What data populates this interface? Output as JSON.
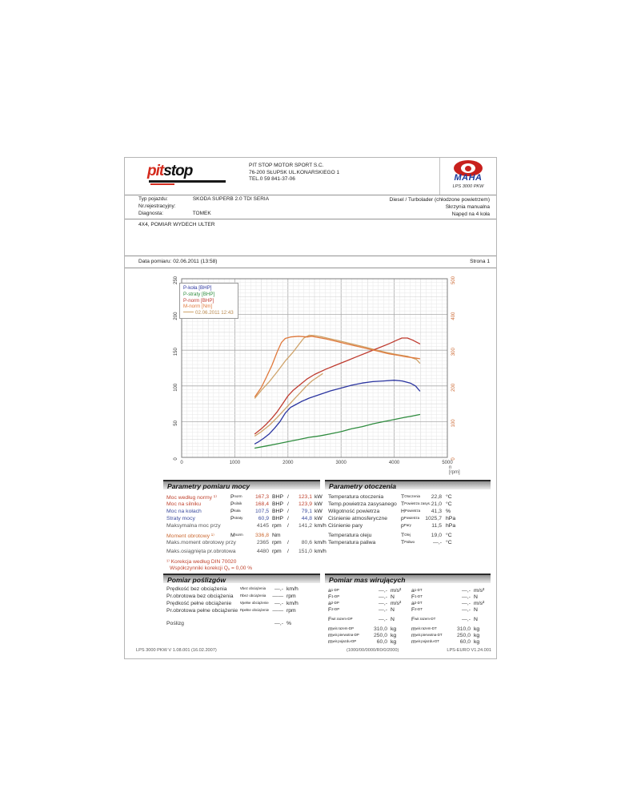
{
  "header": {
    "logo": {
      "part1": "pit",
      "part2": "stop"
    },
    "company_lines": [
      "PIT STOP MOTOR SPORT S.C.",
      "76-200 SŁUPSK UL.KONARSKIEGO 1",
      "TEL.0 59 841-37-06"
    ],
    "maha": {
      "name": "MAHA",
      "model": "LPS 3000 PKW"
    }
  },
  "vehicle": {
    "left": [
      {
        "label": "Typ pojazdu:",
        "value": "SKODA SUPERB 2.0 TDI SERIA"
      },
      {
        "label": "Nr.rejestracyjny:",
        "value": ""
      },
      {
        "label": "Diagnosta:",
        "value": "TOMEK"
      }
    ],
    "right": [
      "Diesel / Turbolader (chłodzone powietrzem)",
      "Skrzynia manualna",
      "Napęd na 4 koła"
    ]
  },
  "comment": "4X4, POMIAR WYDECH ULTER",
  "meta": {
    "date_label": "Data pomiaru: 02.06.2011 (13:58)",
    "page_label": "Strona 1"
  },
  "chart_data": {
    "type": "line",
    "xlabel": "n [rpm]",
    "x_range": [
      0,
      5000
    ],
    "x_ticks": [
      0,
      1000,
      2000,
      3000,
      4000,
      5000
    ],
    "y_left": {
      "ticks": [
        0,
        50,
        100,
        150,
        200,
        250
      ],
      "range": [
        0,
        250
      ],
      "color": "#333333"
    },
    "y_right": {
      "ticks": [
        0,
        100,
        200,
        300,
        400,
        500
      ],
      "range": [
        0,
        500
      ],
      "color": "#cc6a35"
    },
    "grid": "on",
    "legend_position": "top-left",
    "legend": [
      {
        "label": "P-koła [BHP]",
        "color": "#2b35a0"
      },
      {
        "label": "P-straty [BHP]",
        "color": "#2f8c3f"
      },
      {
        "label": "P-norm [BHP]",
        "color": "#bf3b2f"
      },
      {
        "label": "M-norm [Nm]",
        "color": "#e0793c"
      },
      {
        "label": "02.06.2011 12:43",
        "color": "#b98a50",
        "line_swatch": true
      }
    ],
    "series": [
      {
        "name": "M-norm 02.06.2011 12:43",
        "axis": "right",
        "color": "#cfa36a",
        "points": [
          [
            1380,
            166
          ],
          [
            1500,
            188
          ],
          [
            1650,
            212
          ],
          [
            1800,
            240
          ],
          [
            1950,
            270
          ],
          [
            2100,
            295
          ],
          [
            2200,
            315
          ],
          [
            2300,
            334
          ],
          [
            2400,
            342
          ],
          [
            2500,
            341
          ],
          [
            2650,
            337
          ],
          [
            2850,
            330
          ],
          [
            3050,
            323
          ],
          [
            3250,
            316
          ],
          [
            3450,
            309
          ],
          [
            3650,
            301
          ],
          [
            3850,
            294
          ],
          [
            4050,
            288
          ],
          [
            4250,
            283
          ],
          [
            4420,
            274
          ],
          [
            4480,
            264
          ]
        ]
      },
      {
        "name": "P-norm 02.06.2011 12:43",
        "axis": "left",
        "color": "#cfa36a",
        "points": [
          [
            1380,
            30
          ],
          [
            1500,
            36
          ],
          [
            1650,
            45
          ],
          [
            1800,
            56
          ],
          [
            1950,
            68
          ],
          [
            2100,
            80
          ],
          [
            2250,
            92
          ],
          [
            2350,
            100
          ],
          [
            2450,
            107
          ],
          [
            2550,
            112
          ],
          [
            2650,
            117
          ]
        ]
      },
      {
        "name": "P-straty",
        "axis": "left",
        "color": "#2f8c3f",
        "points": [
          [
            1380,
            13
          ],
          [
            1600,
            16
          ],
          [
            1800,
            19
          ],
          [
            2000,
            22
          ],
          [
            2200,
            25
          ],
          [
            2400,
            28
          ],
          [
            2600,
            30
          ],
          [
            2800,
            33
          ],
          [
            3000,
            36
          ],
          [
            3200,
            40
          ],
          [
            3400,
            43
          ],
          [
            3600,
            47
          ],
          [
            3800,
            50
          ],
          [
            4000,
            53
          ],
          [
            4200,
            56
          ],
          [
            4350,
            58
          ],
          [
            4480,
            60
          ]
        ]
      },
      {
        "name": "P-koła",
        "axis": "left",
        "color": "#2b35a0",
        "points": [
          [
            1380,
            19
          ],
          [
            1450,
            22
          ],
          [
            1550,
            27
          ],
          [
            1650,
            33
          ],
          [
            1750,
            41
          ],
          [
            1850,
            50
          ],
          [
            1950,
            62
          ],
          [
            2050,
            70
          ],
          [
            2150,
            74
          ],
          [
            2250,
            78
          ],
          [
            2400,
            83
          ],
          [
            2600,
            88
          ],
          [
            2800,
            93
          ],
          [
            3000,
            97
          ],
          [
            3200,
            101
          ],
          [
            3400,
            104
          ],
          [
            3600,
            106
          ],
          [
            3800,
            107
          ],
          [
            4000,
            108
          ],
          [
            4150,
            107
          ],
          [
            4300,
            104
          ],
          [
            4400,
            100
          ],
          [
            4480,
            93
          ]
        ]
      },
      {
        "name": "P-norm",
        "axis": "left",
        "color": "#bf3b2f",
        "points": [
          [
            1380,
            33
          ],
          [
            1500,
            40
          ],
          [
            1600,
            47
          ],
          [
            1700,
            55
          ],
          [
            1800,
            64
          ],
          [
            1900,
            75
          ],
          [
            2000,
            86
          ],
          [
            2100,
            94
          ],
          [
            2200,
            100
          ],
          [
            2300,
            106
          ],
          [
            2365,
            110
          ],
          [
            2500,
            116
          ],
          [
            2700,
            123
          ],
          [
            2900,
            129
          ],
          [
            3100,
            135
          ],
          [
            3300,
            141
          ],
          [
            3500,
            147
          ],
          [
            3700,
            153
          ],
          [
            3900,
            159
          ],
          [
            4050,
            164
          ],
          [
            4145,
            167
          ],
          [
            4250,
            167
          ],
          [
            4350,
            164
          ],
          [
            4480,
            159
          ]
        ]
      },
      {
        "name": "M-norm",
        "axis": "right",
        "color": "#e0793c",
        "points": [
          [
            1380,
            170
          ],
          [
            1500,
            196
          ],
          [
            1600,
            226
          ],
          [
            1700,
            258
          ],
          [
            1800,
            296
          ],
          [
            1880,
            322
          ],
          [
            1950,
            333
          ],
          [
            2050,
            337
          ],
          [
            2200,
            339
          ],
          [
            2365,
            337
          ],
          [
            2450,
            339
          ],
          [
            2550,
            336
          ],
          [
            2700,
            332
          ],
          [
            2900,
            325
          ],
          [
            3100,
            318
          ],
          [
            3300,
            311
          ],
          [
            3500,
            304
          ],
          [
            3700,
            297
          ],
          [
            3900,
            290
          ],
          [
            4100,
            285
          ],
          [
            4250,
            281
          ],
          [
            4400,
            278
          ],
          [
            4480,
            276
          ]
        ]
      }
    ]
  },
  "sections": {
    "power": {
      "title": "Parametry pomiaru mocy",
      "rows": [
        {
          "label": "Moc według normy ¹⁾",
          "sym": "P",
          "sub": "norm",
          "v1": "167,3",
          "u1": "BHP",
          "v2": "123,1",
          "u2": "kW",
          "color": "#c0442f"
        },
        {
          "label": "Moc na silniku",
          "sym": "P",
          "sub": "silnik",
          "v1": "168,4",
          "u1": "BHP",
          "v2": "123,9",
          "u2": "kW",
          "color": "#c0442f"
        },
        {
          "label": "Moc na kołach",
          "sym": "P",
          "sub": "koła",
          "v1": "107,5",
          "u1": "BHP",
          "v2": "79,1",
          "u2": "kW",
          "color": "#3c4c9e"
        },
        {
          "label": "Straty mocy",
          "sym": "P",
          "sub": "straty",
          "v1": "60,9",
          "u1": "BHP",
          "v2": "44,8",
          "u2": "kW",
          "color": "#3c4c9e"
        },
        {
          "label": "Maksymalna moc przy",
          "sym": "",
          "sub": "",
          "v1": "4145",
          "u1": "rpm",
          "v2": "141,2",
          "u2": "km/h",
          "color": "#555555"
        },
        {
          "label": "Moment obrotowy ¹⁾",
          "sym": "M",
          "sub": "norm",
          "v1": "336,8",
          "u1": "Nm",
          "v2": "",
          "u2": "",
          "color": "#cc6a33"
        },
        {
          "label": "Maks.moment obrotowy przy",
          "sym": "",
          "sub": "",
          "v1": "2365",
          "u1": "rpm",
          "v2": "80,6",
          "u2": "km/h",
          "color": "#555555"
        },
        {
          "label": "Maks.osiągnięta pr.obrotowa",
          "sym": "",
          "sub": "",
          "v1": "4480",
          "u1": "rpm",
          "v2": "151,0",
          "u2": "km/h",
          "color": "#555555"
        }
      ],
      "notes": [
        {
          "pre": "¹⁾ Korekcja według DIN 70020",
          "sub": "",
          "post": ""
        },
        {
          "pre": "Współczynniki korekcji  Q",
          "sub": "v",
          "post": " =   0,00 %"
        }
      ]
    },
    "ambient": {
      "title": "Parametry otoczenia",
      "rows": [
        {
          "label": "Temperatura otoczenia",
          "sym": "T",
          "sub": "Otoczenia",
          "v": "22,8",
          "u": "°C"
        },
        {
          "label": "Temp.powietrza zasysanego",
          "sym": "T",
          "sub": "Powietrza zasys.",
          "v": "21,0",
          "u": "°C"
        },
        {
          "label": "Wilgotność powietrza",
          "sym": "H",
          "sub": "Powietrza",
          "v": "41,3",
          "u": "%"
        },
        {
          "label": "Ciśnienie atmosferyczne",
          "sym": "p",
          "sub": "Powietrza",
          "v": "1025,7",
          "u": "hPa"
        },
        {
          "label": "Ciśnienie pary",
          "sym": "p",
          "sub": "Pary",
          "v": "11,5",
          "u": "hPa"
        },
        {
          "label": "Temperatura oleju",
          "sym": "T",
          "sub": "Olej",
          "v": "19,0",
          "u": "°C"
        },
        {
          "label": "Temperatura paliwa",
          "sym": "T",
          "sub": "Paliwo",
          "v": "—,-",
          "u": "°C"
        }
      ]
    },
    "slip": {
      "title": "Pomiar poślizgów",
      "rows": [
        {
          "label": "Prędkość bez obciążenia",
          "sym": "v",
          "sub": "bez obciążenia",
          "v": "—,-",
          "u": "km/h"
        },
        {
          "label": "Pr.obrotowa bez obciążenia",
          "sym": "n",
          "sub": "bez obciążenia",
          "v": "——",
          "u": "rpm"
        },
        {
          "label": "Prędkość pełne obciążenie",
          "sym": "v",
          "sub": "pełne obciążenie",
          "v": "—,-",
          "u": "km/h"
        },
        {
          "label": "Pr.obrotowa pełne obciążenie",
          "sym": "n",
          "sub": "pełne obciążenie",
          "v": "——",
          "u": "rpm"
        },
        {
          "label": "Poślizg",
          "sym": "",
          "sub": "",
          "v": "—,-",
          "u": "%"
        }
      ]
    },
    "masses": {
      "title": "Pomiar mas wirujących",
      "col_left": [
        {
          "sym": "a",
          "sub": "1-DP",
          "v": "—,-",
          "u": "m/s²"
        },
        {
          "sym": "F",
          "sub": "1-DP",
          "v": "—,-",
          "u": "N"
        },
        {
          "sym": "a",
          "sub": "2-DP",
          "v": "—,-",
          "u": "m/s²"
        },
        {
          "sym": "F",
          "sub": "2-DP",
          "v": "—,-",
          "u": "N"
        },
        {
          "sym": "F",
          "sub": "wir.razem-DP",
          "v": "—,-",
          "u": "N"
        },
        {
          "sym": "m",
          "sub": "wir.razem-DP",
          "v": "310,0",
          "u": "kg"
        },
        {
          "sym": "m",
          "sub": "wir.pierwotna-DP",
          "v": "250,0",
          "u": "kg"
        },
        {
          "sym": "m",
          "sub": "wir.pojazdu-DP",
          "v": "60,0",
          "u": "kg"
        }
      ],
      "col_right": [
        {
          "sym": "a",
          "sub": "1-DT",
          "v": "—,-",
          "u": "m/s²"
        },
        {
          "sym": "F",
          "sub": "1-DT",
          "v": "—,-",
          "u": "N"
        },
        {
          "sym": "a",
          "sub": "2-DT",
          "v": "—,-",
          "u": "m/s²"
        },
        {
          "sym": "F",
          "sub": "2-DT",
          "v": "—,-",
          "u": "N"
        },
        {
          "sym": "F",
          "sub": "wir.razem-DT",
          "v": "—,-",
          "u": "N"
        },
        {
          "sym": "m",
          "sub": "wir.razem-DT",
          "v": "310,0",
          "u": "kg"
        },
        {
          "sym": "m",
          "sub": "wir.pierwotna-DT",
          "v": "250,0",
          "u": "kg"
        },
        {
          "sym": "m",
          "sub": "wir.pojazdu-DT",
          "v": "60,0",
          "u": "kg"
        }
      ]
    }
  },
  "footer": {
    "left": "LPS 3000 PKW V 1.08.001 (16.02.2007)",
    "center": "(1000/00/0000/R0/0/2000)",
    "right": "LPS-EURO V1.24.001"
  }
}
